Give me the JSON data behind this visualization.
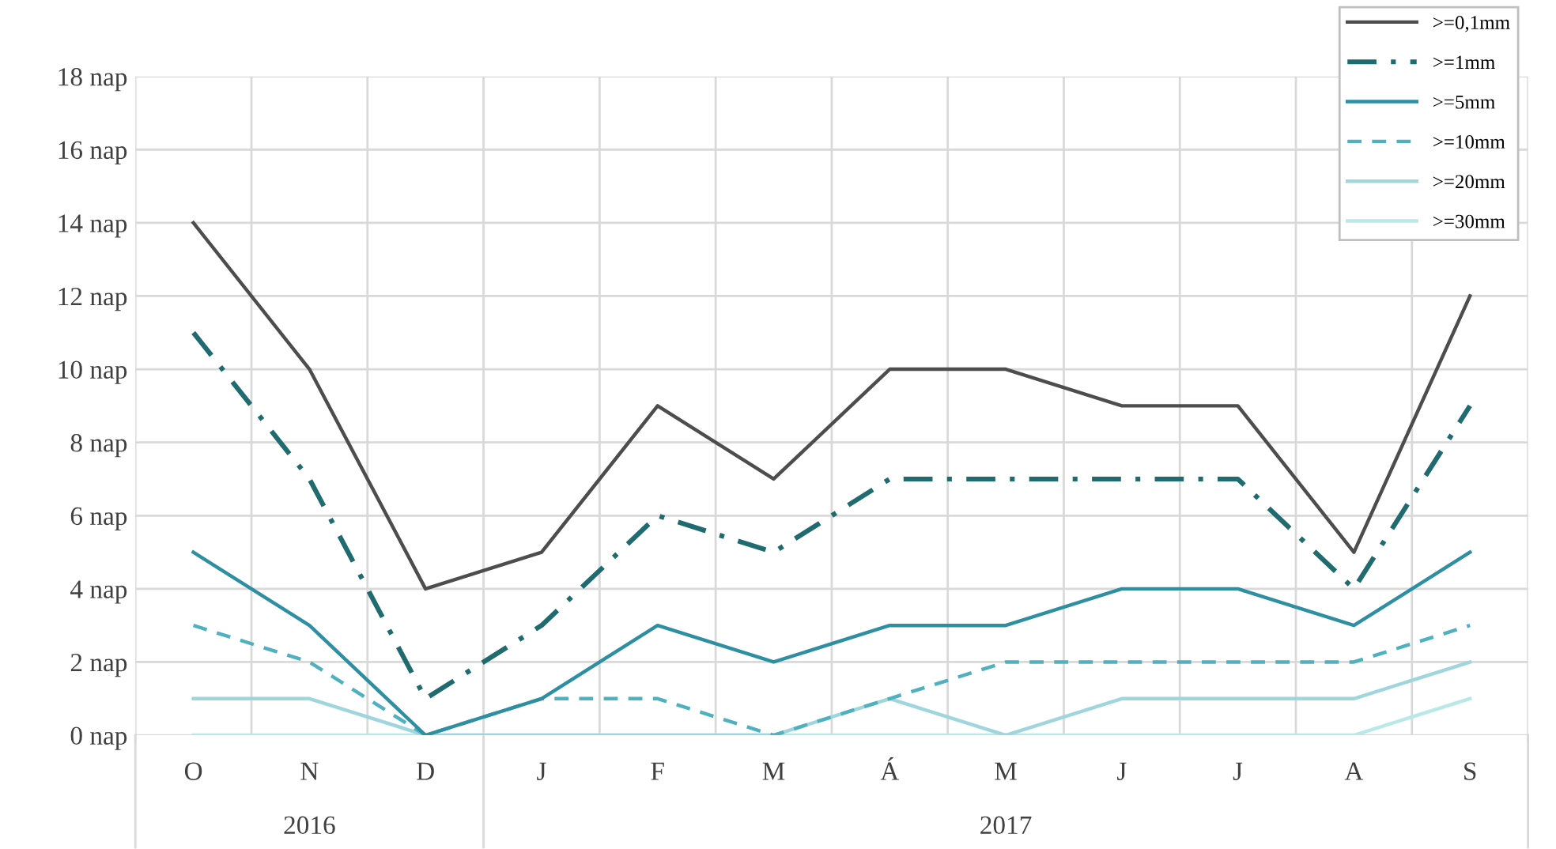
{
  "chart_data": {
    "type": "line",
    "categories": [
      "O",
      "N",
      "D",
      "J",
      "F",
      "M",
      "Á",
      "M",
      "J",
      "J",
      "A",
      "S"
    ],
    "series": [
      {
        "name": ">=0,1mm",
        "color": "#4d4d4d",
        "line_style": "solid",
        "values": [
          14,
          10,
          4,
          5,
          9,
          7,
          10,
          10,
          9,
          9,
          5,
          12
        ]
      },
      {
        "name": ">=1mm",
        "color": "#1f6b70",
        "line_style": "dashdot",
        "values": [
          11,
          7,
          1,
          3,
          6,
          5,
          7,
          7,
          7,
          7,
          4,
          9
        ]
      },
      {
        "name": ">=5mm",
        "color": "#2e8fa3",
        "line_style": "solid",
        "values": [
          5,
          3,
          0,
          1,
          3,
          2,
          3,
          3,
          4,
          4,
          3,
          5
        ]
      },
      {
        "name": ">=10mm",
        "color": "#4fb0c0",
        "line_style": "dashed",
        "values": [
          3,
          2,
          0,
          1,
          1,
          0,
          1,
          2,
          2,
          2,
          2,
          3
        ]
      },
      {
        "name": ">=20mm",
        "color": "#9fd6de",
        "line_style": "solid",
        "values": [
          1,
          1,
          0,
          0,
          0,
          0,
          1,
          0,
          1,
          1,
          1,
          2
        ]
      },
      {
        "name": ">=30mm",
        "color": "#b8e8e8",
        "line_style": "solid",
        "values": [
          0,
          0,
          0,
          0,
          0,
          0,
          0,
          0,
          0,
          0,
          0,
          1
        ]
      }
    ],
    "ylim": [
      0,
      18
    ],
    "yticks": [
      {
        "value": 0,
        "label": "0 nap"
      },
      {
        "value": 2,
        "label": "2 nap"
      },
      {
        "value": 4,
        "label": "4 nap"
      },
      {
        "value": 6,
        "label": "6 nap"
      },
      {
        "value": 8,
        "label": "8 nap"
      },
      {
        "value": 10,
        "label": "10 nap"
      },
      {
        "value": 12,
        "label": "12 nap"
      },
      {
        "value": 14,
        "label": "14 nap"
      },
      {
        "value": 16,
        "label": "16 nap"
      },
      {
        "value": 18,
        "label": "18 nap"
      }
    ],
    "annotations": [
      "2016",
      "2017"
    ],
    "grid": true,
    "legend": "top right",
    "marker": "none"
  }
}
